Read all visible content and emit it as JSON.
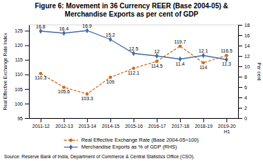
{
  "chart_data": {
    "type": "line",
    "title": "Figure 6: Movement in 36 Currency REER (Base 2004-05) &",
    "subtitle": "Merchandise Exports as per cent of GDP",
    "categories": [
      "2011-12",
      "2012-13",
      "2013-14",
      "2014-15",
      "2015-16",
      "2016-17",
      "2017-18",
      "2018-19",
      "2019-20\nH1"
    ],
    "series": [
      {
        "name": "Real Effective Exchange Rate (Base 2004-05=100)",
        "color": "#D46A1A",
        "marker": "circle",
        "line_style": "dashed",
        "values": [
          110.3,
          105.6,
          103.3,
          109.0,
          112.1,
          114.5,
          119.7,
          114.0,
          116.5
        ]
      },
      {
        "name": "Merchandise Exports as % of GDP (RHS)",
        "color": "#4169A0",
        "marker": "diamond",
        "line_style": "solid",
        "axis": "y2",
        "values": [
          16.8,
          16.4,
          16.9,
          15.2,
          12.5,
          12.0,
          11.4,
          12.1,
          11.3
        ]
      }
    ],
    "ylabel": "Real Effective Exchange Rate Index",
    "y2label": "Per cent",
    "ylim": [
      95,
      127
    ],
    "yticks": [
      95,
      100,
      105,
      110,
      115,
      120,
      125
    ],
    "y2lim": [
      0,
      18
    ],
    "y2ticks": [
      0,
      2,
      4,
      6,
      8,
      10,
      12,
      14,
      16,
      18
    ],
    "data_labels": true,
    "grid": false,
    "legend": "bottom",
    "source": "Source: Reserve Bank of India, Department of Commerce & Central Statistics Office (CSO)."
  }
}
